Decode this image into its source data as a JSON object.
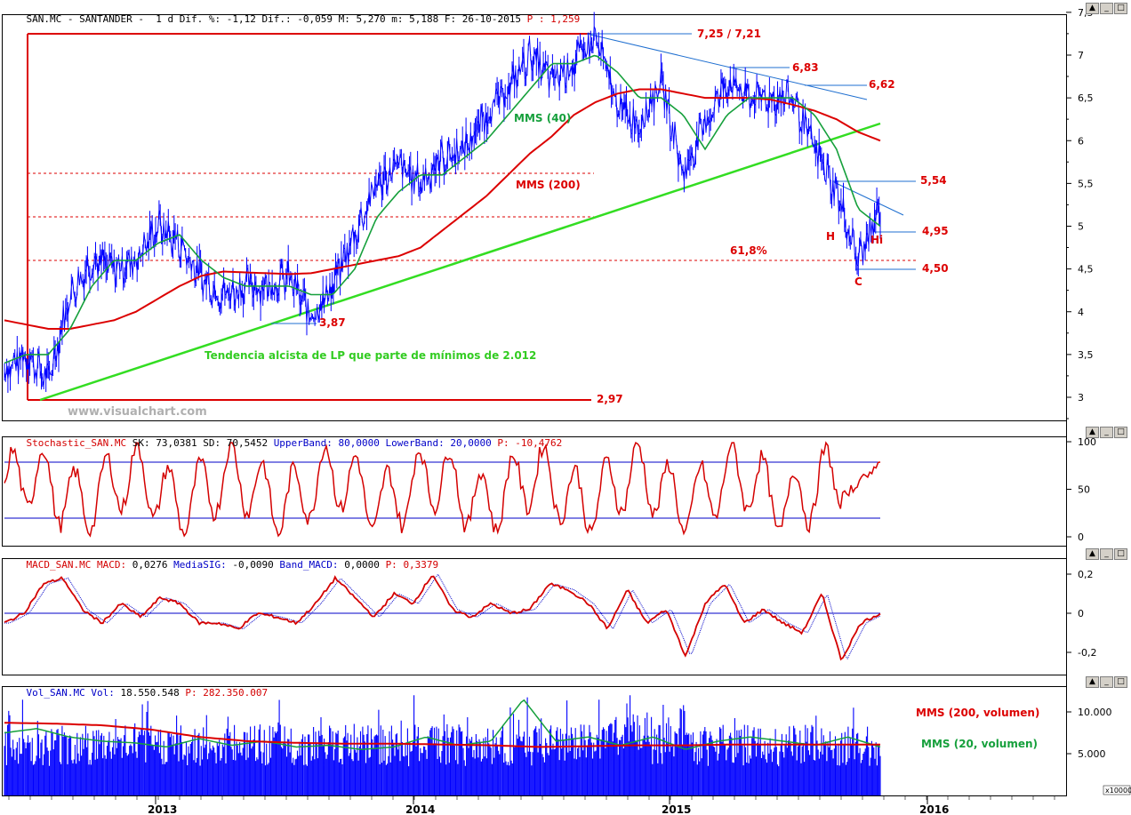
{
  "window_buttons": [
    "▲",
    "_",
    "□"
  ],
  "price_panel": {
    "header": {
      "symbol": "SAN.MC",
      "name": "SANTANDER",
      "interval": "1 d",
      "dif_pct_label": "Dif. %:",
      "dif_pct": "-1,12",
      "dif_label": "Dif.:",
      "dif": "-0,059",
      "max_label": "M:",
      "max": "5,270",
      "min_label": "m:",
      "min": "5,188",
      "date_label": "F:",
      "date": "26-10-2015",
      "p_label": "P :",
      "p": "1,259"
    },
    "y_ticks": [
      "7,5",
      "7",
      "6,5",
      "6",
      "5,5",
      "5",
      "4,5",
      "4",
      "3,5",
      "3"
    ],
    "annotations": {
      "level_725": "7,25 / 7,21",
      "level_683": "6,83",
      "level_662": "6,62",
      "level_554": "5,54",
      "level_495": "4,95",
      "level_450": "4,50",
      "level_387": "3,87",
      "level_297": "2,97",
      "fib": "61,8%",
      "mms40": "MMS (40)",
      "mms200": "MMS (200)",
      "trend": "Tendencia alcista de LP que parte de mínimos de 2.012",
      "h": "H",
      "hi": "Hi",
      "c": "C",
      "watermark": "www.visualchart.com"
    },
    "colors": {
      "price": "#0000ff",
      "mms40": "#16a03c",
      "mms200": "#dc0000",
      "trend": "#33dd22",
      "level_red": "#dc0000",
      "resist_blue": "#1f6fd0"
    }
  },
  "stoch_panel": {
    "header": {
      "name": "Stochastic_SAN.MC",
      "sk_label": "SK:",
      "sk": "73,0381",
      "sd_label": "SD:",
      "sd": "70,5452",
      "ub_label": "UpperBand:",
      "ub": "80,0000",
      "lb_label": "LowerBand:",
      "lb": "20,0000",
      "p_label": "P:",
      "p": "-10,4762"
    },
    "y_ticks": [
      "100",
      "50",
      "0"
    ]
  },
  "macd_panel": {
    "header": {
      "name": "MACD_SAN.MC",
      "macd_label": "MACD:",
      "macd": "0,0276",
      "sig_label": "MediaSIG:",
      "sig": "-0,0090",
      "band_label": "Band_MACD:",
      "band": "0,0000",
      "p_label": "P:",
      "p": "0,3379"
    },
    "y_ticks": [
      "0,2",
      "0",
      "-0,2"
    ]
  },
  "vol_panel": {
    "header": {
      "name": "Vol_SAN.MC",
      "vol_label": "Vol:",
      "vol": "18.550.548",
      "p_label": "P:",
      "p": "282.350.007"
    },
    "y_ticks": [
      "10.000",
      "5.000"
    ],
    "multiplier": "x10000",
    "legend_200": "MMS (200, volumen)",
    "legend_20": "MMS (20, volumen)"
  },
  "x_axis": {
    "labels": [
      "2013",
      "2014",
      "2015",
      "2016"
    ]
  },
  "chart_data": {
    "type": "line",
    "title": "SAN.MC - SANTANDER",
    "x_range": [
      "2012-06",
      "2015-10-26"
    ],
    "price": {
      "ylim": [
        2.7,
        7.5
      ],
      "x_dates": [
        "2012-06",
        "2012-07",
        "2012-08",
        "2012-09",
        "2012-10",
        "2012-11",
        "2012-12",
        "2013-01",
        "2013-02",
        "2013-03",
        "2013-04",
        "2013-05",
        "2013-06",
        "2013-07",
        "2013-08",
        "2013-09",
        "2013-10",
        "2013-11",
        "2013-12",
        "2014-01",
        "2014-02",
        "2014-03",
        "2014-04",
        "2014-05",
        "2014-06",
        "2014-07",
        "2014-08",
        "2014-09",
        "2014-10",
        "2014-11",
        "2014-12",
        "2015-01",
        "2015-02",
        "2015-03",
        "2015-04",
        "2015-05",
        "2015-06",
        "2015-07",
        "2015-08",
        "2015-09",
        "2015-10"
      ],
      "close": [
        3.3,
        3.5,
        3.2,
        4.2,
        4.6,
        4.5,
        4.6,
        5.0,
        4.8,
        4.4,
        4.2,
        4.3,
        4.3,
        4.4,
        3.95,
        4.3,
        4.9,
        5.5,
        5.7,
        5.5,
        5.8,
        5.9,
        6.3,
        6.6,
        7.0,
        6.7,
        6.9,
        7.2,
        6.4,
        6.2,
        6.7,
        5.6,
        6.2,
        6.7,
        6.5,
        6.5,
        6.5,
        5.9,
        5.4,
        4.6,
        5.2
      ],
      "mms40": [
        3.4,
        3.5,
        3.5,
        3.8,
        4.3,
        4.6,
        4.6,
        4.8,
        4.9,
        4.6,
        4.4,
        4.3,
        4.3,
        4.3,
        4.2,
        4.2,
        4.5,
        5.1,
        5.4,
        5.6,
        5.6,
        5.8,
        6.0,
        6.3,
        6.6,
        6.9,
        6.9,
        7.0,
        6.8,
        6.5,
        6.5,
        6.3,
        5.9,
        6.3,
        6.5,
        6.5,
        6.5,
        6.3,
        5.9,
        5.2,
        5.0
      ],
      "mms200": [
        3.9,
        3.85,
        3.8,
        3.8,
        3.85,
        3.9,
        4.0,
        4.15,
        4.3,
        4.42,
        4.47,
        4.46,
        4.45,
        4.44,
        4.45,
        4.5,
        4.55,
        4.6,
        4.65,
        4.75,
        4.95,
        5.15,
        5.35,
        5.6,
        5.85,
        6.05,
        6.3,
        6.45,
        6.55,
        6.6,
        6.6,
        6.55,
        6.5,
        6.5,
        6.5,
        6.48,
        6.42,
        6.35,
        6.25,
        6.1,
        6.0
      ],
      "support_levels": [
        2.97,
        3.87,
        4.5,
        4.95,
        5.54,
        6.62,
        6.83,
        7.25
      ]
    },
    "stochastic": {
      "upper_band": 80,
      "lower_band": 20,
      "last_sk": 73.0381,
      "last_sd": 70.5452
    },
    "macd": {
      "last_macd": 0.0276,
      "last_signal": -0.009
    },
    "volume": {
      "last": 18550548,
      "unit": "x10000",
      "mms200_level": 6000,
      "mms20_level": 6100
    }
  }
}
